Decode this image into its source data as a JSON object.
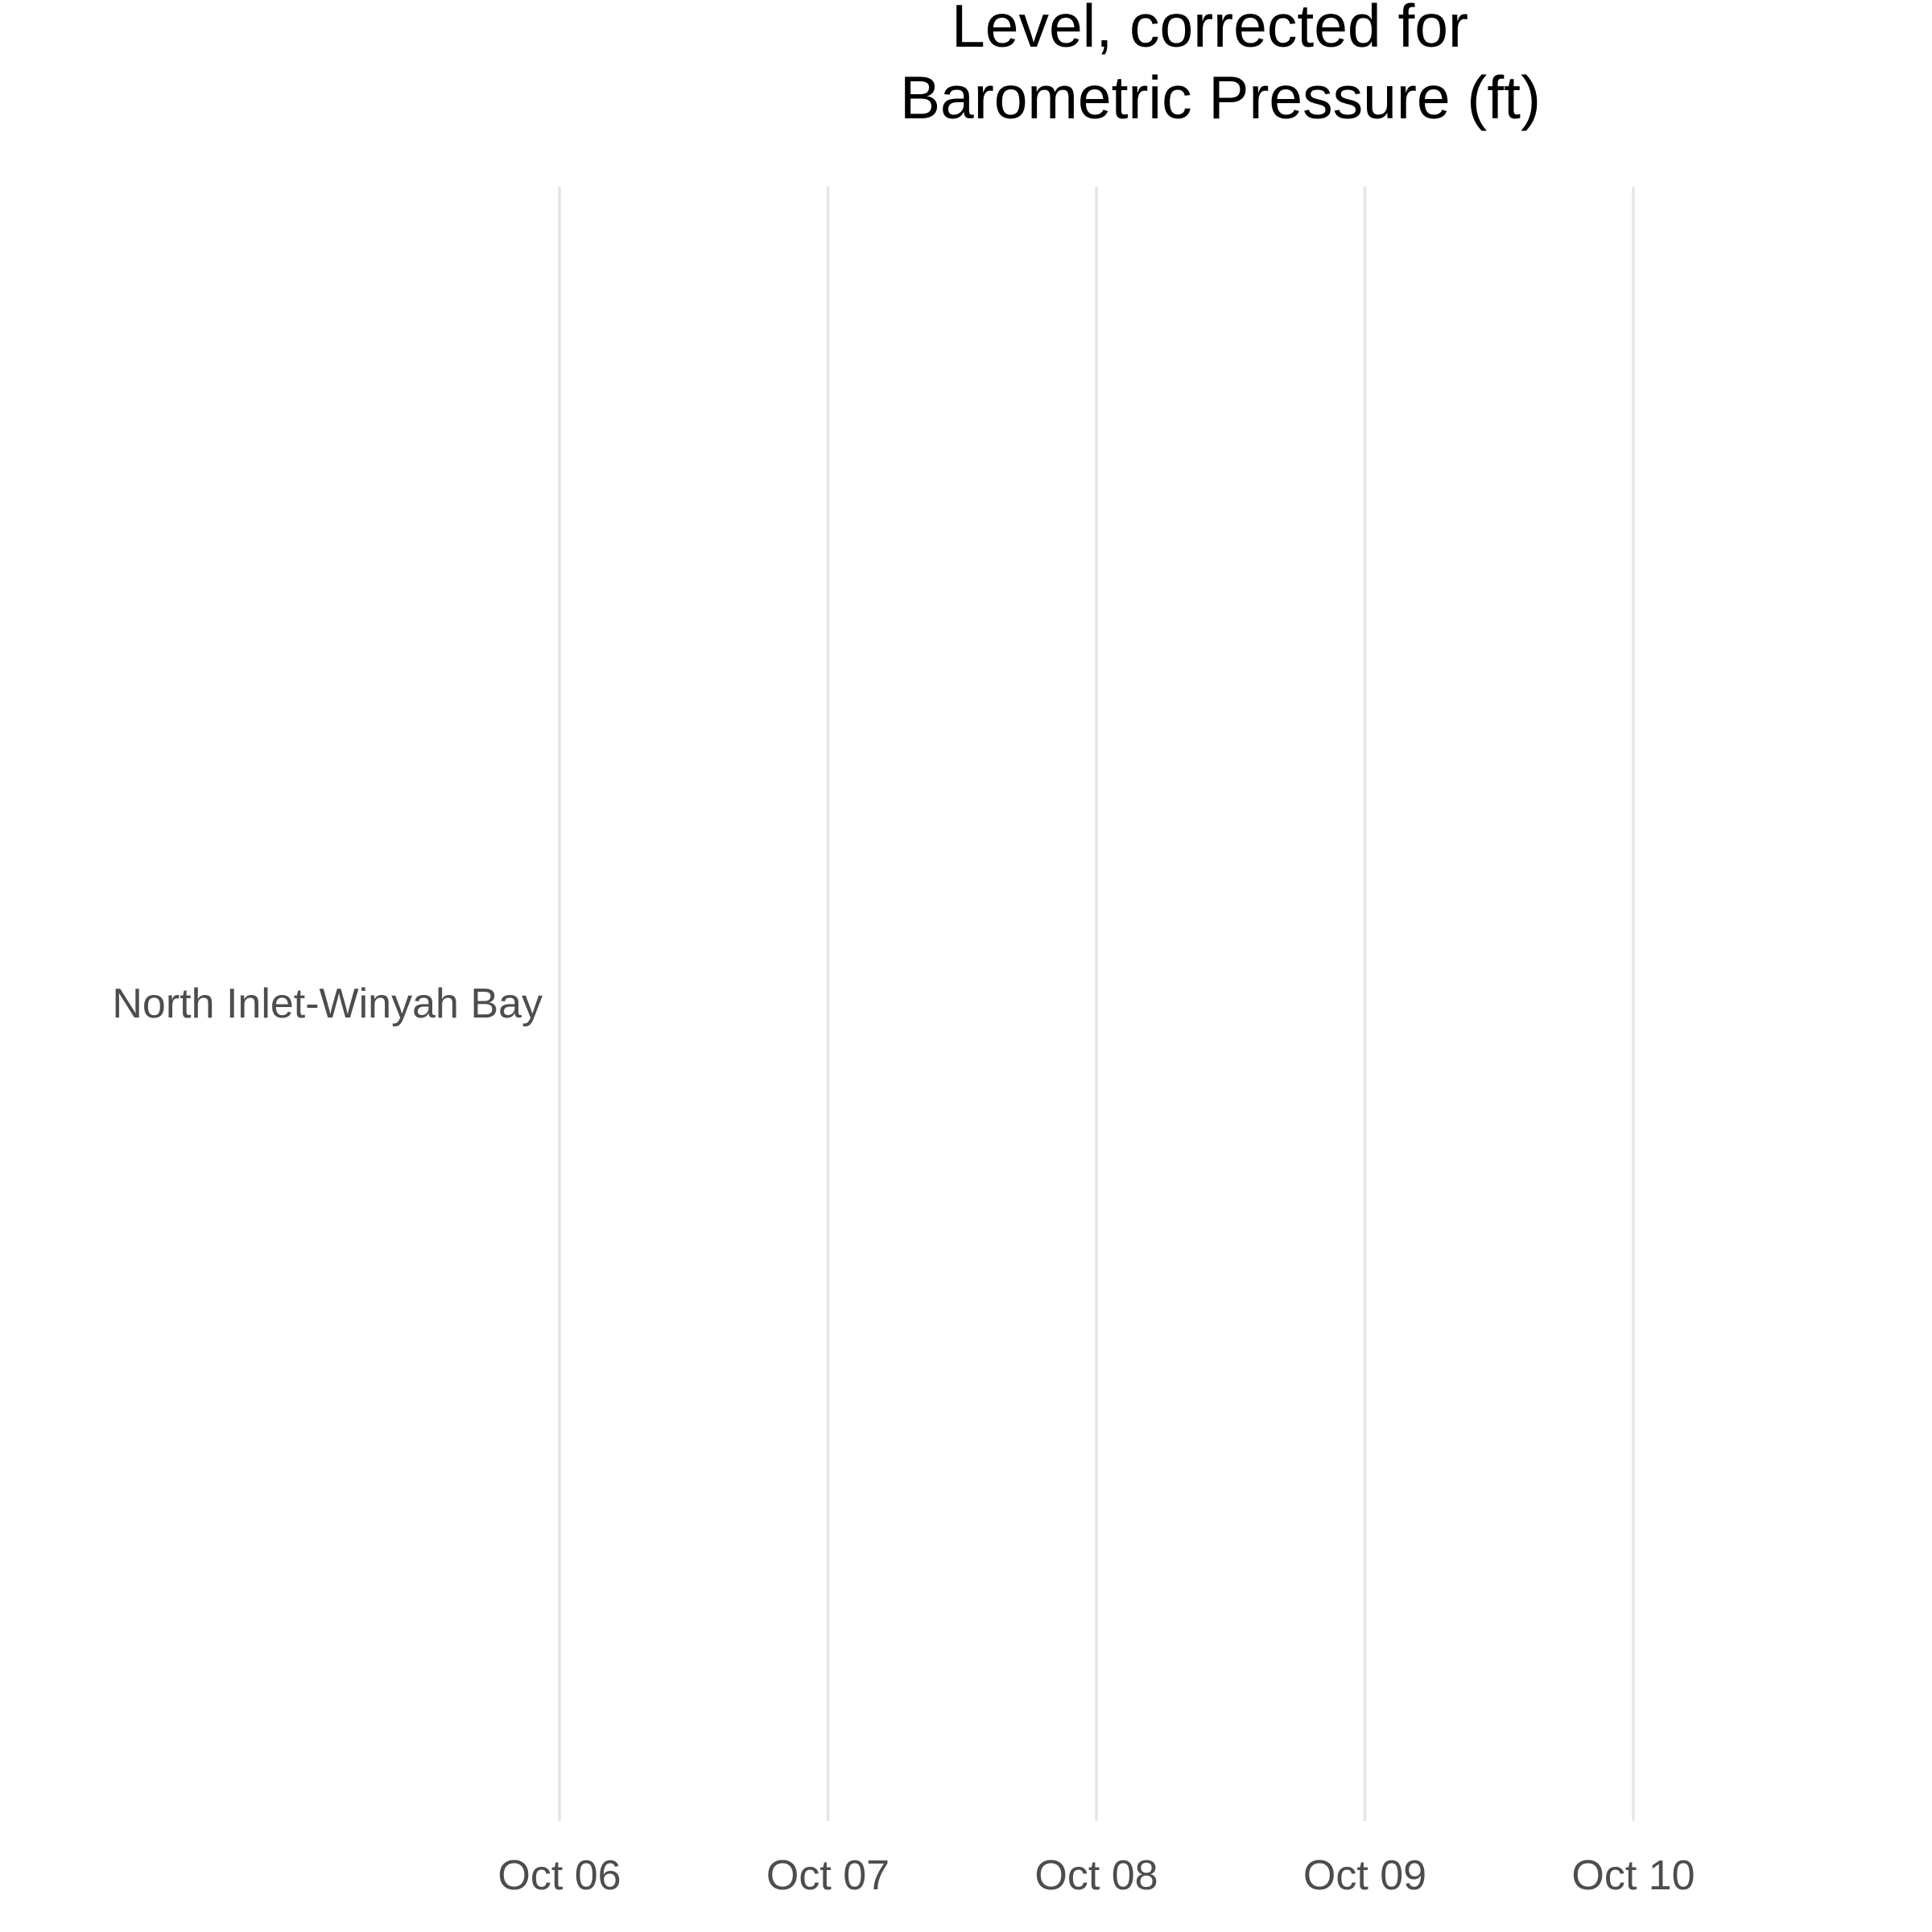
{
  "chart_data": {
    "type": "line",
    "title": [
      "Level, corrected for",
      "Barometric Pressure (ft)"
    ],
    "xlabel": "",
    "ylabel": "",
    "x_ticks": [
      "Oct 06",
      "Oct 07",
      "Oct 08",
      "Oct 09",
      "Oct 10"
    ],
    "y_categories": [
      "North Inlet-Winyah Bay"
    ],
    "series": [],
    "grid": {
      "x_major": true,
      "y_major": false
    },
    "legend": "none"
  }
}
